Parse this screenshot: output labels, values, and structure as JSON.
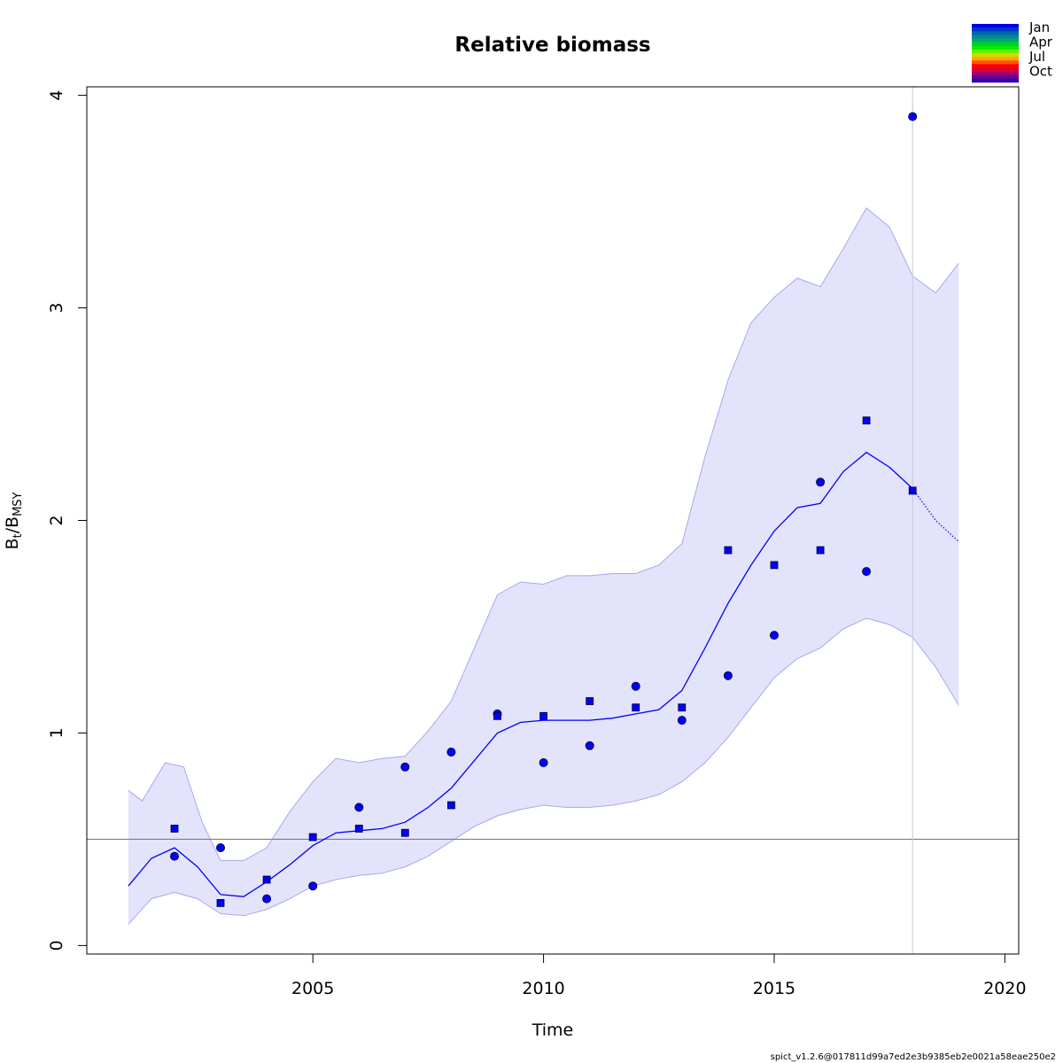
{
  "chart_data": {
    "type": "line",
    "title": "Relative biomass",
    "xlabel": "Time",
    "ylabel_main": "B",
    "ylabel_sub1": "t",
    "ylabel_sep": "/B",
    "ylabel_sub2": "MSY",
    "xlim": [
      2000.1,
      2020.3
    ],
    "ylim": [
      -0.04,
      4.04
    ],
    "xticks": [
      2005,
      2010,
      2015,
      2020
    ],
    "yticks": [
      0,
      1,
      2,
      3,
      4
    ],
    "reference_line": 0.5,
    "reference_line_color": "#808080",
    "vertical_line": 2018,
    "vertical_line_color": "#c8c8d8",
    "colors": {
      "series": "#0000ff",
      "band_fill": "#e3e3fb",
      "band_edge": "#a8a8ee",
      "axis": "#000000"
    },
    "estimate": {
      "x": [
        2001.0,
        2001.5,
        2002.0,
        2002.5,
        2003.0,
        2003.5,
        2004.0,
        2004.5,
        2005.0,
        2005.5,
        2006.0,
        2006.5,
        2007.0,
        2007.5,
        2008.0,
        2008.5,
        2009.0,
        2009.5,
        2010.0,
        2010.5,
        2011.0,
        2011.5,
        2012.0,
        2012.5,
        2013.0,
        2013.5,
        2014.0,
        2014.5,
        2015.0,
        2015.5,
        2016.0,
        2016.5,
        2017.0,
        2017.5,
        2018.0
      ],
      "y": [
        0.28,
        0.41,
        0.46,
        0.37,
        0.24,
        0.23,
        0.3,
        0.38,
        0.47,
        0.53,
        0.54,
        0.55,
        0.58,
        0.65,
        0.74,
        0.87,
        1.0,
        1.05,
        1.06,
        1.06,
        1.06,
        1.07,
        1.09,
        1.11,
        1.2,
        1.4,
        1.61,
        1.79,
        1.95,
        2.06,
        2.08,
        2.23,
        2.32,
        2.25,
        2.15
      ]
    },
    "forecast": {
      "x": [
        2018.0,
        2018.5,
        2019.0
      ],
      "y": [
        2.15,
        2.0,
        1.9
      ]
    },
    "ci_upper": {
      "x": [
        2001.0,
        2001.3,
        2001.8,
        2002.2,
        2002.6,
        2003.0,
        2003.5,
        2004.0,
        2004.5,
        2005.0,
        2005.5,
        2006.0,
        2006.5,
        2007.0,
        2007.5,
        2008.0,
        2008.5,
        2009.0,
        2009.5,
        2010.0,
        2010.5,
        2011.0,
        2011.5,
        2012.0,
        2012.5,
        2013.0,
        2013.5,
        2014.0,
        2014.5,
        2015.0,
        2015.5,
        2016.0,
        2016.5,
        2017.0,
        2017.5,
        2018.0,
        2018.5,
        2019.0
      ],
      "y": [
        0.73,
        0.68,
        0.86,
        0.84,
        0.58,
        0.4,
        0.4,
        0.46,
        0.63,
        0.77,
        0.88,
        0.86,
        0.88,
        0.89,
        1.01,
        1.15,
        1.4,
        1.65,
        1.71,
        1.7,
        1.74,
        1.74,
        1.75,
        1.75,
        1.79,
        1.89,
        2.3,
        2.66,
        2.93,
        3.05,
        3.14,
        3.1,
        3.28,
        3.47,
        3.38,
        3.15,
        3.07,
        3.21
      ]
    },
    "ci_lower": {
      "x": [
        2001.0,
        2001.5,
        2002.0,
        2002.5,
        2003.0,
        2003.5,
        2004.0,
        2004.5,
        2005.0,
        2005.5,
        2006.0,
        2006.5,
        2007.0,
        2007.5,
        2008.0,
        2008.5,
        2009.0,
        2009.5,
        2010.0,
        2010.5,
        2011.0,
        2011.5,
        2012.0,
        2012.5,
        2013.0,
        2013.5,
        2014.0,
        2014.5,
        2015.0,
        2015.5,
        2016.0,
        2016.5,
        2017.0,
        2017.5,
        2018.0,
        2018.5,
        2019.0
      ],
      "y": [
        0.1,
        0.22,
        0.25,
        0.22,
        0.15,
        0.14,
        0.17,
        0.22,
        0.28,
        0.31,
        0.33,
        0.34,
        0.37,
        0.42,
        0.49,
        0.56,
        0.61,
        0.64,
        0.66,
        0.65,
        0.65,
        0.66,
        0.68,
        0.71,
        0.77,
        0.86,
        0.98,
        1.12,
        1.26,
        1.35,
        1.4,
        1.49,
        1.54,
        1.51,
        1.45,
        1.31,
        1.13
      ]
    },
    "observations_circle": {
      "x": [
        2002,
        2003,
        2004,
        2005,
        2006,
        2007,
        2008,
        2009,
        2010,
        2011,
        2012,
        2013,
        2014,
        2015,
        2016,
        2017,
        2018
      ],
      "y": [
        0.42,
        0.46,
        0.22,
        0.28,
        0.65,
        0.84,
        0.91,
        1.09,
        0.86,
        0.94,
        1.22,
        1.06,
        1.27,
        1.46,
        2.18,
        1.76,
        3.9
      ]
    },
    "observations_square": {
      "x": [
        2002,
        2003,
        2004,
        2005,
        2006,
        2007,
        2008,
        2009,
        2010,
        2011,
        2012,
        2013,
        2014,
        2015,
        2016,
        2017,
        2018
      ],
      "y": [
        0.55,
        0.2,
        0.31,
        0.51,
        0.55,
        0.53,
        0.66,
        1.08,
        1.08,
        1.15,
        1.12,
        1.12,
        1.86,
        1.79,
        1.86,
        2.47,
        2.14
      ]
    },
    "season_legend": {
      "labels": [
        "Jan",
        "Apr",
        "Jul",
        "Oct"
      ],
      "colors": [
        "#0000ee",
        "#0033cc",
        "#0066aa",
        "#008899",
        "#00aa66",
        "#00cc33",
        "#00ee00",
        "#66ee00",
        "#ccdd00",
        "#ffaa00",
        "#ff5500",
        "#ff0000",
        "#dd0033",
        "#aa0066",
        "#660099",
        "#3300aa"
      ]
    }
  },
  "footer": "spict_v1.2.6@017811d99a7ed2e3b9385eb2e0021a58eae250e2"
}
